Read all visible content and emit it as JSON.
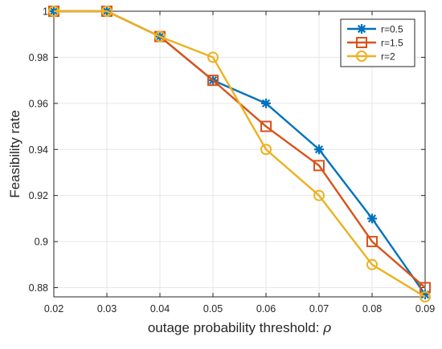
{
  "chart_data": {
    "type": "line",
    "title": "",
    "xlabel": "outage probability threshold: ",
    "xlabel_symbol": "ρ",
    "ylabel": "Feasibility rate",
    "xlim": [
      0.02,
      0.09
    ],
    "ylim": [
      0.876,
      1.0
    ],
    "x_ticks": [
      "0.02",
      "0.03",
      "0.04",
      "0.05",
      "0.06",
      "0.07",
      "0.08",
      "0.09"
    ],
    "y_ticks": [
      "0.88",
      "0.9",
      "0.92",
      "0.94",
      "0.96",
      "0.98",
      "1"
    ],
    "x_tick_values": [
      0.02,
      0.03,
      0.04,
      0.05,
      0.06,
      0.07,
      0.08,
      0.09
    ],
    "y_tick_values": [
      0.88,
      0.9,
      0.92,
      0.94,
      0.96,
      0.98,
      1.0
    ],
    "grid": true,
    "legend_position": "top-right",
    "x": [
      0.02,
      0.03,
      0.04,
      0.05,
      0.06,
      0.07,
      0.08,
      0.09
    ],
    "series": [
      {
        "name": "r=0.5",
        "color": "#0072BD",
        "marker": "asterisk",
        "values": [
          1.0,
          1.0,
          0.989,
          0.97,
          0.96,
          0.94,
          0.91,
          0.877
        ]
      },
      {
        "name": "r=1.5",
        "color": "#D95319",
        "marker": "square",
        "values": [
          1.0,
          1.0,
          0.989,
          0.97,
          0.95,
          0.933,
          0.9,
          0.88
        ]
      },
      {
        "name": "r=2",
        "color": "#EDB120",
        "marker": "circle",
        "values": [
          1.0,
          1.0,
          0.989,
          0.98,
          0.94,
          0.92,
          0.89,
          0.876
        ]
      }
    ]
  }
}
